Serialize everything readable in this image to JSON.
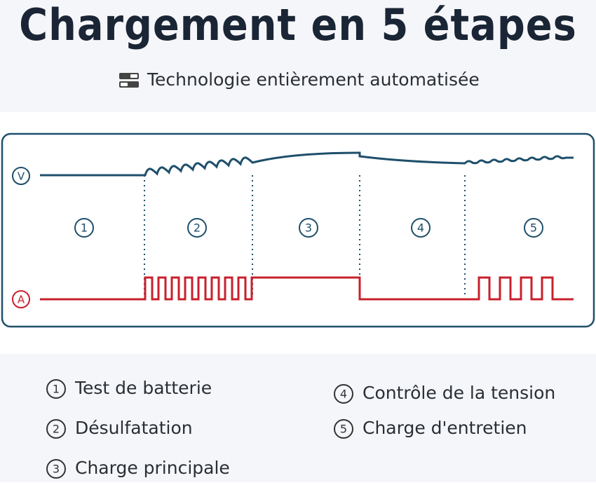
{
  "header": {
    "title": "Chargement en 5 étapes",
    "subtitle": "Technologie entièrement automatisée"
  },
  "diagram": {
    "voltage_label": "V",
    "current_label": "A",
    "stages": [
      "1",
      "2",
      "3",
      "4",
      "5"
    ]
  },
  "legend": {
    "items": [
      {
        "number": "1",
        "label": "Test de batterie"
      },
      {
        "number": "2",
        "label": "Désulfatation"
      },
      {
        "number": "3",
        "label": "Charge principale"
      },
      {
        "number": "4",
        "label": "Contrôle de la tension"
      },
      {
        "number": "5",
        "label": "Charge d'entretien"
      }
    ]
  }
}
